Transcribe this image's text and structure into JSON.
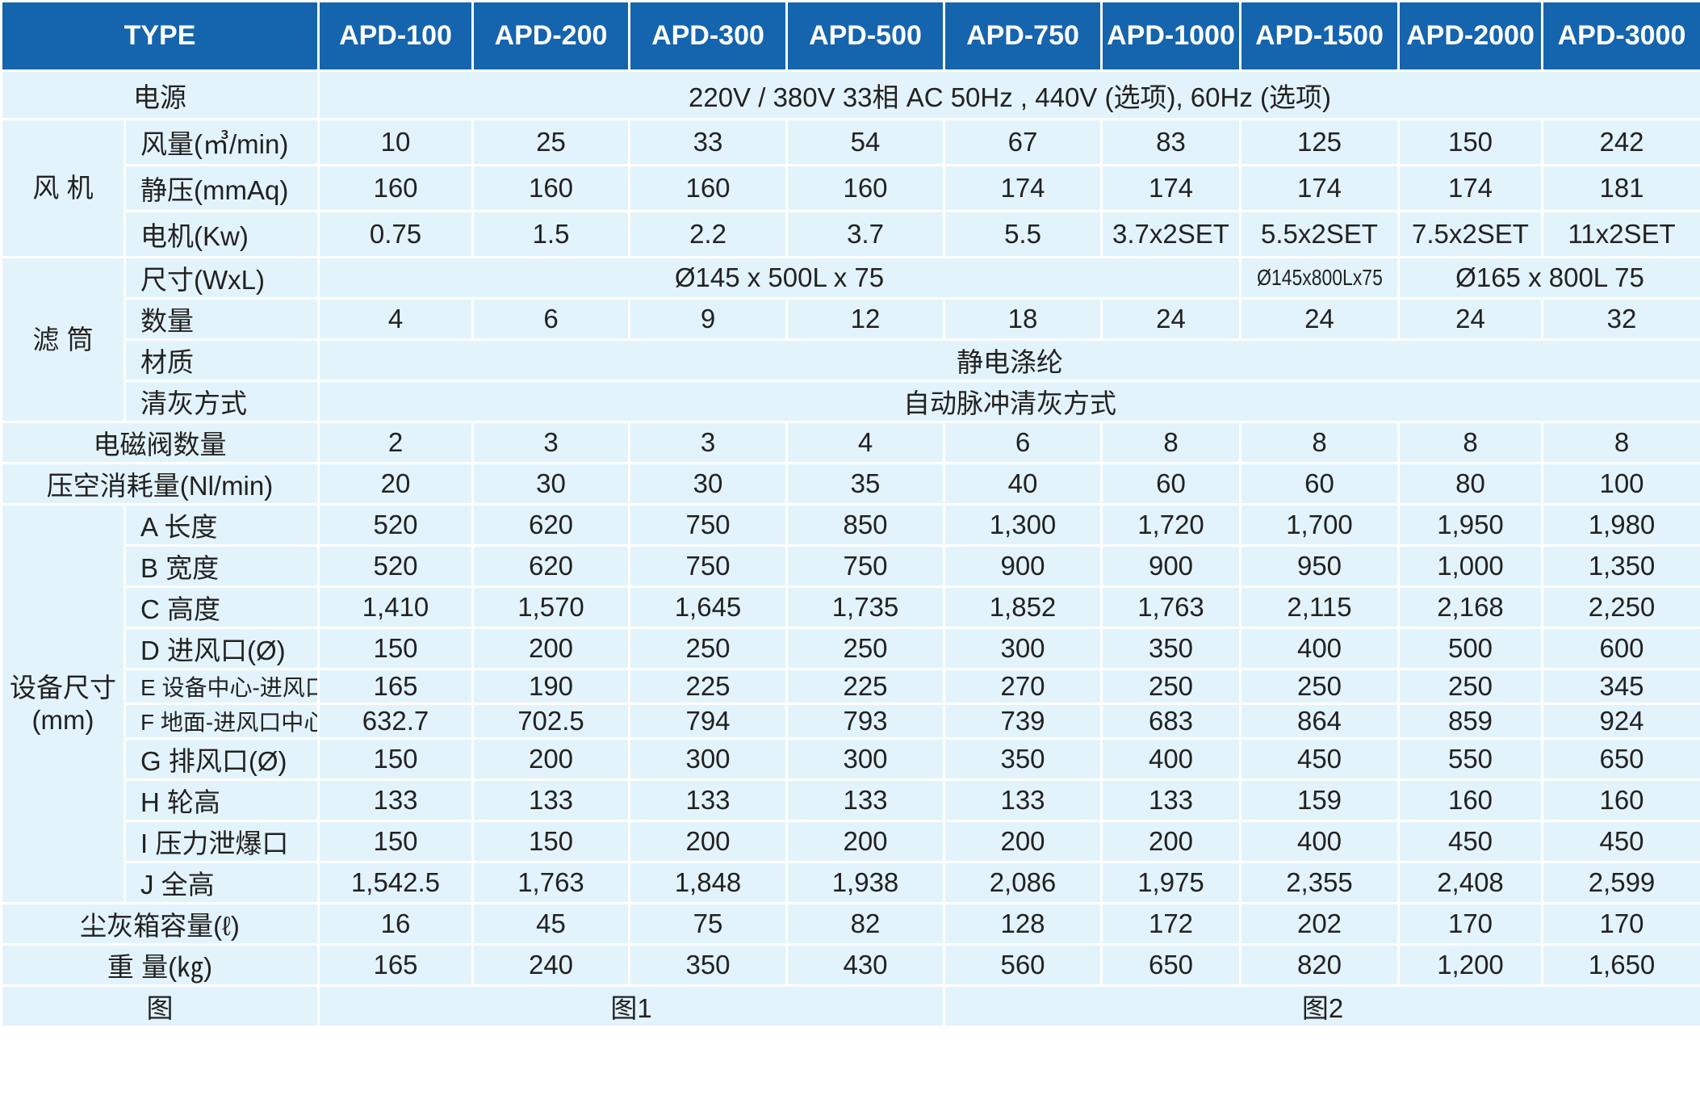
{
  "header": {
    "type_label": "TYPE",
    "models": [
      "APD-100",
      "APD-200",
      "APD-300",
      "APD-500",
      "APD-750",
      "APD-1000",
      "APD-1500",
      "APD-2000",
      "APD-3000"
    ]
  },
  "power": {
    "label": "电源",
    "value": "220V / 380V 33相 AC 50Hz , 440V (选项), 60Hz (选项)"
  },
  "fan": {
    "group": "风 机",
    "rows": [
      {
        "label": "风量(㎥/min)",
        "values": [
          "10",
          "25",
          "33",
          "54",
          "67",
          "83",
          "125",
          "150",
          "242"
        ]
      },
      {
        "label": "静压(mmAq)",
        "values": [
          "160",
          "160",
          "160",
          "160",
          "174",
          "174",
          "174",
          "174",
          "181"
        ]
      },
      {
        "label": "电机(Kw)",
        "values": [
          "0.75",
          "1.5",
          "2.2",
          "3.7",
          "5.5",
          "3.7x2SET",
          "5.5x2SET",
          "7.5x2SET",
          "11x2SET"
        ]
      }
    ]
  },
  "filter": {
    "group": "滤 筒",
    "size_label": "尺寸(WxL)",
    "size_values": [
      "Ø145 x 500L x 75",
      "Ø145x800Lx75",
      "Ø165 x 800L 75"
    ],
    "qty_label": "数量",
    "qty_values": [
      "4",
      "6",
      "9",
      "12",
      "18",
      "24",
      "24",
      "24",
      "32"
    ],
    "material_label": "材质",
    "material_value": "静电涤纶",
    "cleaning_label": "清灰方式",
    "cleaning_value": "自动脉冲清灰方式"
  },
  "valve": {
    "label": "电磁阀数量",
    "values": [
      "2",
      "3",
      "3",
      "4",
      "6",
      "8",
      "8",
      "8",
      "8"
    ]
  },
  "air": {
    "label": "压空消耗量(Nl/min)",
    "values": [
      "20",
      "30",
      "30",
      "35",
      "40",
      "60",
      "60",
      "80",
      "100"
    ]
  },
  "dims": {
    "group": "设备尺寸(mm)",
    "rows": [
      {
        "label": "A 长度",
        "values": [
          "520",
          "620",
          "750",
          "850",
          "1,300",
          "1,720",
          "1,700",
          "1,950",
          "1,980"
        ]
      },
      {
        "label": "B 宽度",
        "values": [
          "520",
          "620",
          "750",
          "750",
          "900",
          "900",
          "950",
          "1,000",
          "1,350"
        ]
      },
      {
        "label": "C 高度",
        "values": [
          "1,410",
          "1,570",
          "1,645",
          "1,735",
          "1,852",
          "1,763",
          "2,115",
          "2,168",
          "2,250"
        ]
      },
      {
        "label": "D 进风口(Ø)",
        "values": [
          "150",
          "200",
          "250",
          "250",
          "300",
          "350",
          "400",
          "500",
          "600"
        ]
      },
      {
        "label": "E 设备中心-进风口中心",
        "values": [
          "165",
          "190",
          "225",
          "225",
          "270",
          "250",
          "250",
          "250",
          "345"
        ]
      },
      {
        "label": "F 地面-进风口中心",
        "values": [
          "632.7",
          "702.5",
          "794",
          "793",
          "739",
          "683",
          "864",
          "859",
          "924"
        ]
      },
      {
        "label": "G 排风口(Ø)",
        "values": [
          "150",
          "200",
          "300",
          "300",
          "350",
          "400",
          "450",
          "550",
          "650"
        ]
      },
      {
        "label": "H 轮高",
        "values": [
          "133",
          "133",
          "133",
          "133",
          "133",
          "133",
          "159",
          "160",
          "160"
        ]
      },
      {
        "label": "I 压力泄爆口",
        "values": [
          "150",
          "150",
          "200",
          "200",
          "200",
          "200",
          "400",
          "450",
          "450"
        ]
      },
      {
        "label": "J 全高",
        "values": [
          "1,542.5",
          "1,763",
          "1,848",
          "1,938",
          "2,086",
          "1,975",
          "2,355",
          "2,408",
          "2,599"
        ]
      }
    ]
  },
  "dust": {
    "label": "尘灰箱容量(ℓ)",
    "values": [
      "16",
      "45",
      "75",
      "82",
      "128",
      "172",
      "202",
      "170",
      "170"
    ]
  },
  "weight": {
    "label": "重 量(㎏)",
    "values": [
      "165",
      "240",
      "350",
      "430",
      "560",
      "650",
      "820",
      "1,200",
      "1,650"
    ]
  },
  "figure": {
    "label": "图",
    "values": [
      "图1",
      "图2"
    ]
  }
}
